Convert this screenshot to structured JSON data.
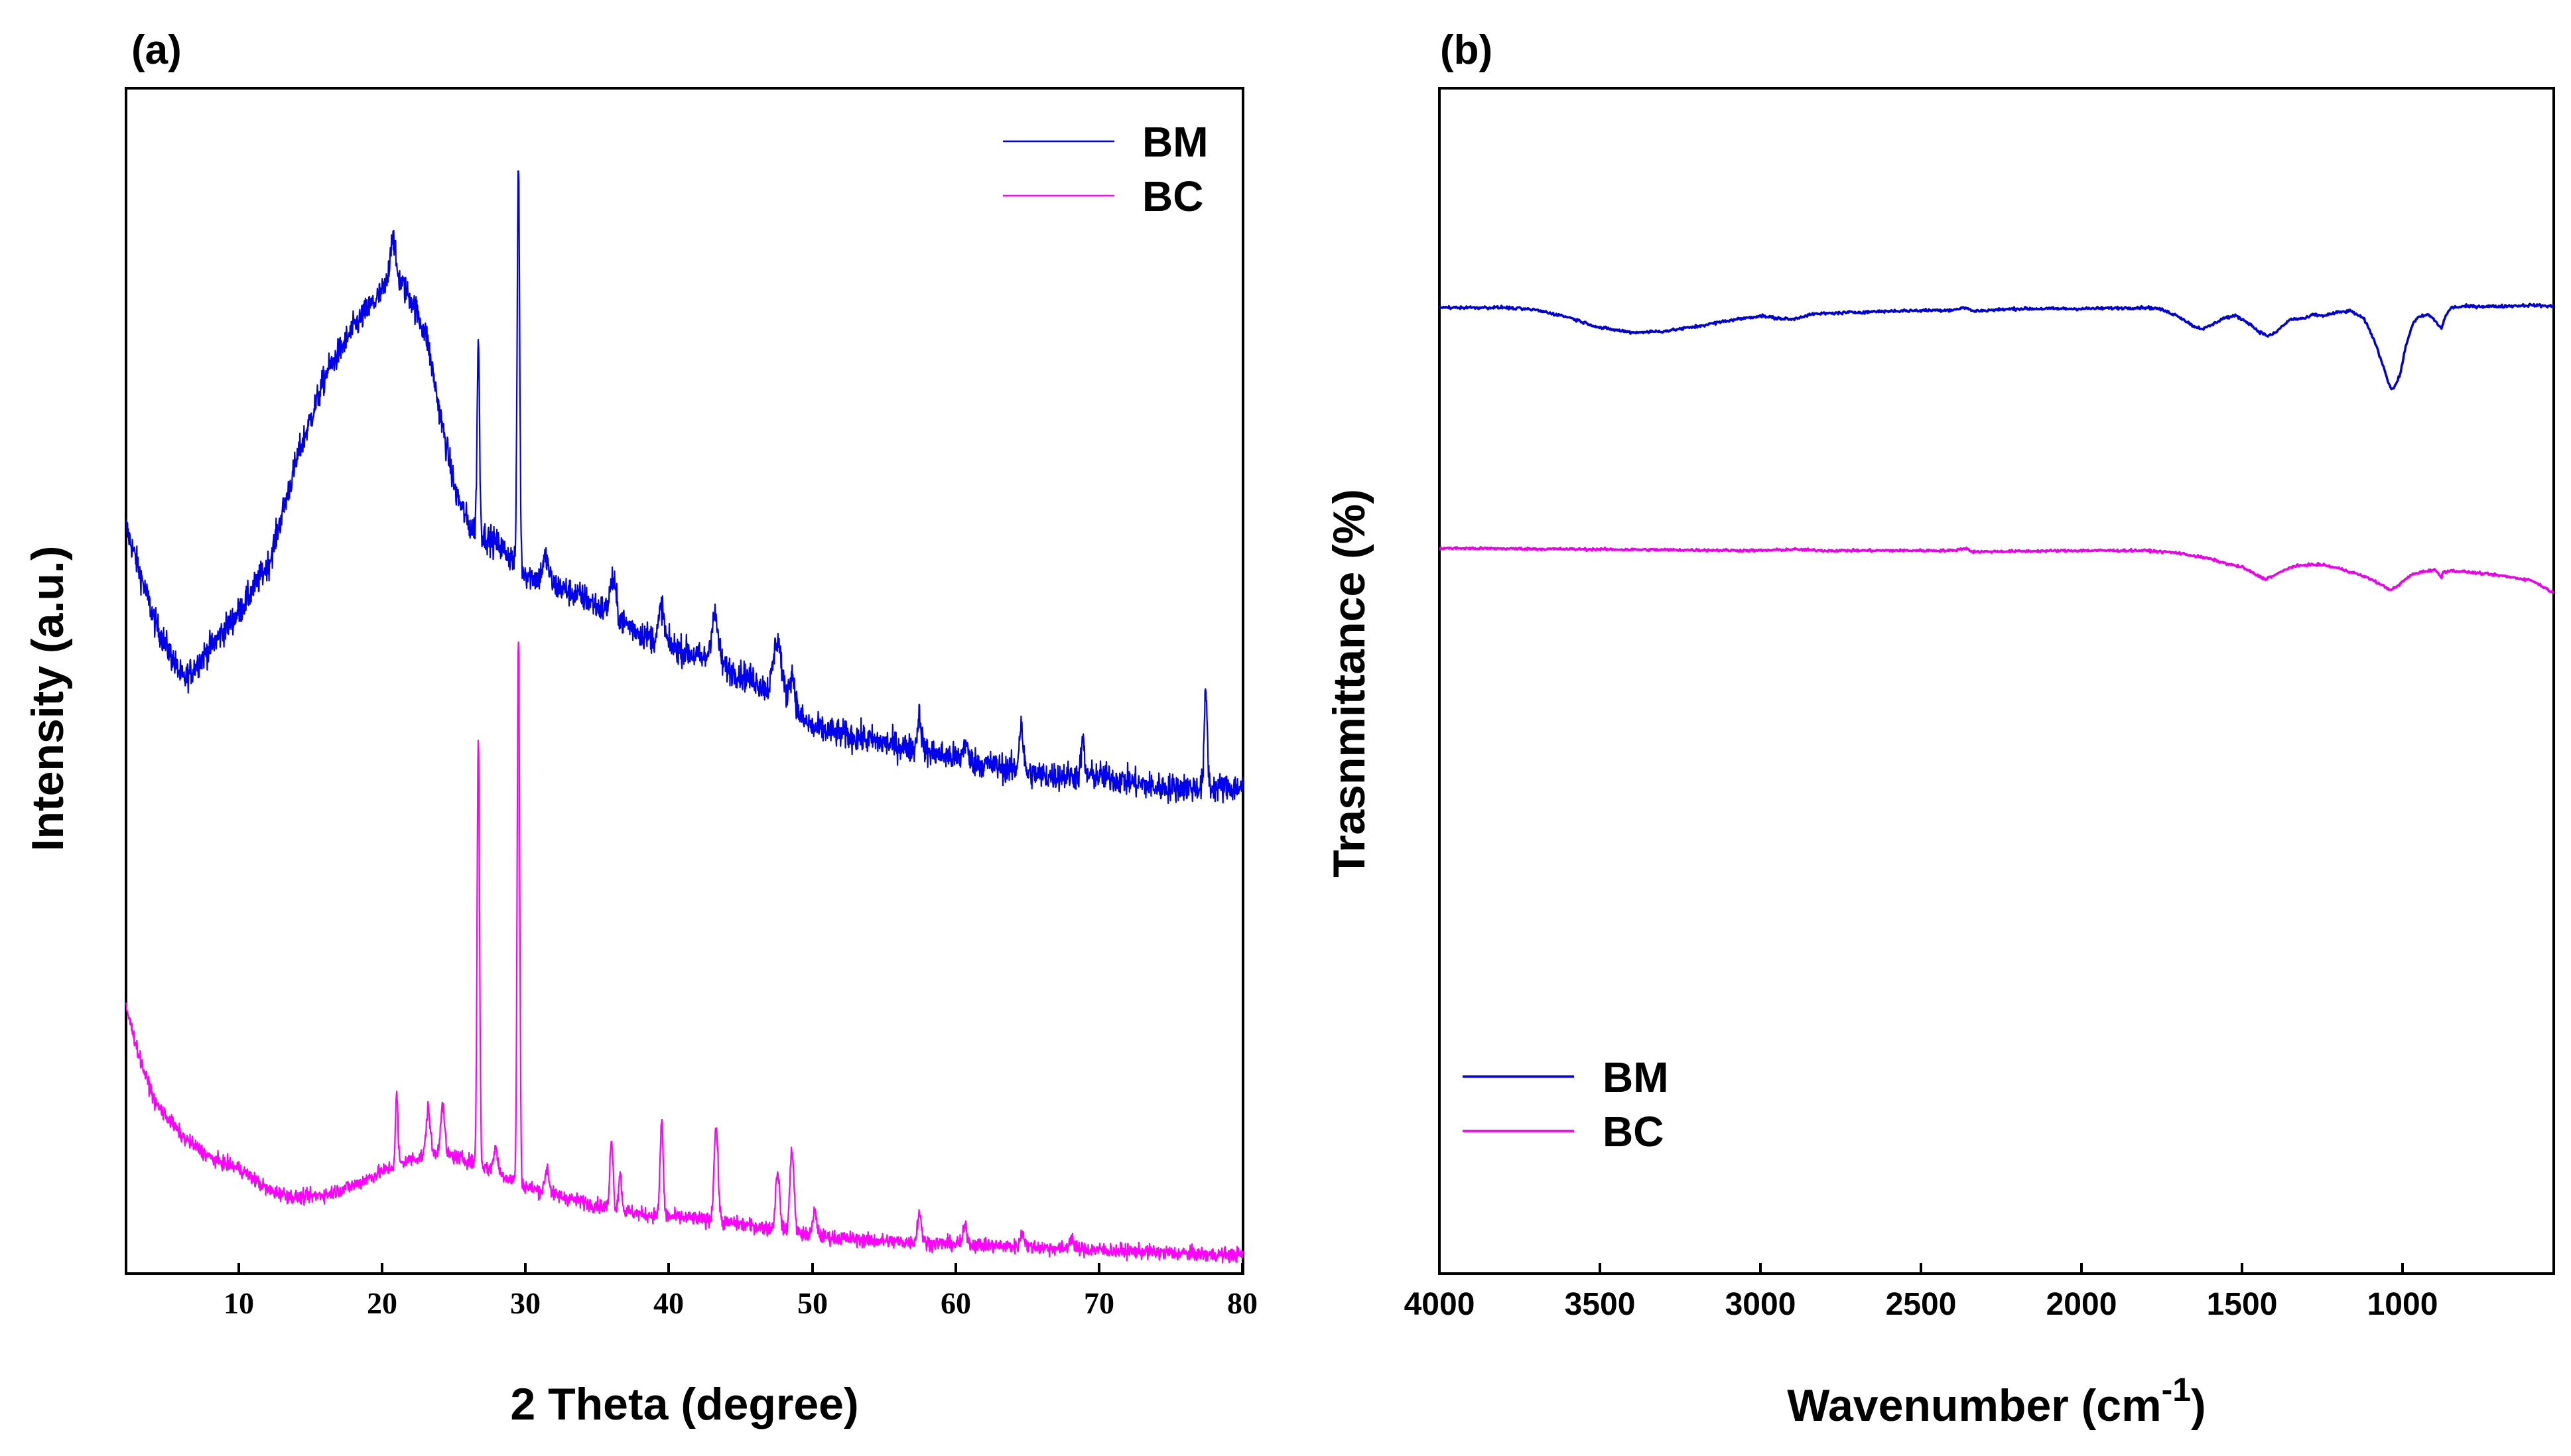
{
  "chart_data": [
    {
      "panel_label": "(a)",
      "type": "line",
      "xlabel": "2 Theta (degree)",
      "ylabel": "Intensity (a.u.)",
      "xlim": [
        2,
        80
      ],
      "ylim": [
        0,
        100
      ],
      "x_ticks": [
        10,
        20,
        30,
        40,
        50,
        60,
        70,
        80
      ],
      "x_tick_labels": [
        "10",
        "20",
        "30",
        "40",
        "50",
        "60",
        "70",
        "80"
      ],
      "y_ticks_labelled": false,
      "legend_position": "top-right",
      "legend": [
        "BM",
        "BC"
      ],
      "series": [
        {
          "name": "BM",
          "color": "#0000ee",
          "kind": "xrd",
          "noise": 1.2,
          "background": [
            [
              2,
              63
            ],
            [
              4,
              55
            ],
            [
              6,
              50
            ],
            [
              8,
              53
            ],
            [
              10,
              56
            ],
            [
              12,
              60
            ],
            [
              14,
              69
            ],
            [
              16,
              76
            ],
            [
              18,
              80
            ],
            [
              20,
              83
            ],
            [
              21,
              84
            ],
            [
              22,
              82
            ],
            [
              23,
              79
            ],
            [
              24,
              72
            ],
            [
              25,
              66
            ],
            [
              26,
              63
            ],
            [
              28,
              61.5
            ],
            [
              30,
              59
            ],
            [
              34,
              57
            ],
            [
              38,
              54
            ],
            [
              42,
              52
            ],
            [
              46,
              50
            ],
            [
              50,
              46
            ],
            [
              54,
              45
            ],
            [
              58,
              44
            ],
            [
              62,
              43
            ],
            [
              66,
              42
            ],
            [
              70,
              42
            ],
            [
              74,
              41
            ],
            [
              78,
              41
            ],
            [
              80,
              41
            ]
          ],
          "peaks": [
            [
              20.6,
              4,
              0.25
            ],
            [
              26.6,
              16,
              0.12
            ],
            [
              29.4,
              34,
              0.12
            ],
            [
              31.3,
              2,
              0.3
            ],
            [
              36,
              3,
              0.3
            ],
            [
              39.4,
              3,
              0.25
            ],
            [
              43.1,
              4,
              0.35
            ],
            [
              47.5,
              5,
              0.4
            ],
            [
              48.5,
              3,
              0.3
            ],
            [
              57.4,
              3,
              0.2
            ],
            [
              60.6,
              1.5,
              0.2
            ],
            [
              64.5,
              4,
              0.2
            ],
            [
              68.8,
              3,
              0.15
            ],
            [
              77.4,
              8,
              0.15
            ]
          ]
        },
        {
          "name": "BC",
          "color": "#ff00ff",
          "kind": "xrd",
          "noise": 0.6,
          "background": [
            [
              2,
              22.5
            ],
            [
              3,
              18
            ],
            [
              4,
              14.5
            ],
            [
              6,
              11.5
            ],
            [
              8,
              9.7
            ],
            [
              10,
              8.8
            ],
            [
              12,
              7
            ],
            [
              14,
              6.4
            ],
            [
              16,
              6.7
            ],
            [
              18,
              7.5
            ],
            [
              20,
              8.7
            ],
            [
              22,
              9.7
            ],
            [
              24,
              10.2
            ],
            [
              26,
              9.5
            ],
            [
              28,
              8.5
            ],
            [
              30,
              7.3
            ],
            [
              34,
              6
            ],
            [
              38,
              5
            ],
            [
              42,
              4.6
            ],
            [
              46,
              4
            ],
            [
              50,
              3.2
            ],
            [
              54,
              2.8
            ],
            [
              58,
              2.6
            ],
            [
              62,
              2.4
            ],
            [
              66,
              2.2
            ],
            [
              70,
              2
            ],
            [
              74,
              1.8
            ],
            [
              78,
              1.6
            ],
            [
              80,
              1.6
            ]
          ],
          "peaks": [
            [
              20.9,
              6,
              0.12
            ],
            [
              23.1,
              4,
              0.2
            ],
            [
              24.1,
              4,
              0.2
            ],
            [
              26.6,
              36,
              0.12
            ],
            [
              27.8,
              2,
              0.2
            ],
            [
              29.4,
              46,
              0.12
            ],
            [
              31.4,
              2,
              0.2
            ],
            [
              35.9,
              6,
              0.15
            ],
            [
              36.5,
              3,
              0.15
            ],
            [
              39.4,
              8,
              0.15
            ],
            [
              43.2,
              8,
              0.2
            ],
            [
              47.5,
              5,
              0.2
            ],
            [
              48.5,
              7,
              0.2
            ],
            [
              50.1,
              2,
              0.2
            ],
            [
              57.4,
              2.5,
              0.2
            ],
            [
              60.6,
              1.5,
              0.2
            ],
            [
              64.6,
              1.2,
              0.2
            ],
            [
              68,
              1,
              0.2
            ]
          ]
        }
      ]
    },
    {
      "panel_label": "(b)",
      "type": "line",
      "xlabel": "Wavenumber (cm",
      "xlabel_superscript": "-1",
      "xlabel_suffix": ")",
      "ylabel": "Trasnmittance (%)",
      "xlim": [
        4000,
        530
      ],
      "ylim": [
        0,
        100
      ],
      "x_ticks": [
        4000,
        3500,
        3000,
        2500,
        2000,
        1500,
        1000
      ],
      "x_tick_labels": [
        "4000",
        "3500",
        "3000",
        "2500",
        "2000",
        "1500",
        "1000"
      ],
      "y_ticks_labelled": false,
      "legend_position": "bottom-left",
      "legend": [
        "BM",
        "BC"
      ],
      "series": [
        {
          "name": "BM",
          "color": "#0000dd",
          "kind": "ftir",
          "noise": 0.12,
          "points": [
            [
              4000,
              81.5
            ],
            [
              3800,
              81.5
            ],
            [
              3700,
              81.3
            ],
            [
              3600,
              80.7
            ],
            [
              3500,
              79.8
            ],
            [
              3400,
              79.4
            ],
            [
              3300,
              79.5
            ],
            [
              3200,
              79.9
            ],
            [
              3100,
              80.4
            ],
            [
              3000,
              80.8
            ],
            [
              2950,
              80.6
            ],
            [
              2900,
              80.5
            ],
            [
              2850,
              80.9
            ],
            [
              2800,
              81
            ],
            [
              2600,
              81.2
            ],
            [
              2400,
              81.3
            ],
            [
              2360,
              81.5
            ],
            [
              2340,
              81.2
            ],
            [
              2200,
              81.4
            ],
            [
              2000,
              81.4
            ],
            [
              1800,
              81.5
            ],
            [
              1760,
              81.4
            ],
            [
              1700,
              80.8
            ],
            [
              1650,
              79.9
            ],
            [
              1620,
              79.7
            ],
            [
              1590,
              80.1
            ],
            [
              1560,
              80.6
            ],
            [
              1520,
              80.8
            ],
            [
              1480,
              80.2
            ],
            [
              1450,
              79.5
            ],
            [
              1420,
              79.1
            ],
            [
              1400,
              79.3
            ],
            [
              1380,
              79.8
            ],
            [
              1350,
              80.5
            ],
            [
              1300,
              80.6
            ],
            [
              1280,
              80.9
            ],
            [
              1250,
              80.8
            ],
            [
              1200,
              81.1
            ],
            [
              1160,
              81.2
            ],
            [
              1120,
              80.5
            ],
            [
              1090,
              78.8
            ],
            [
              1060,
              76.5
            ],
            [
              1040,
              74.8
            ],
            [
              1030,
              74.6
            ],
            [
              1010,
              75.7
            ],
            [
              990,
              78.3
            ],
            [
              970,
              80.1
            ],
            [
              950,
              80.7
            ],
            [
              920,
              80.9
            ],
            [
              900,
              80.4
            ],
            [
              880,
              79.7
            ],
            [
              870,
              80.6
            ],
            [
              850,
              81.5
            ],
            [
              800,
              81.6
            ],
            [
              700,
              81.6
            ],
            [
              600,
              81.7
            ],
            [
              530,
              81.6
            ]
          ]
        },
        {
          "name": "BC",
          "color": "#ee00ee",
          "kind": "ftir",
          "noise": 0.1,
          "points": [
            [
              4000,
              61.2
            ],
            [
              3500,
              61.1
            ],
            [
              3000,
              61
            ],
            [
              2900,
              61.1
            ],
            [
              2800,
              61
            ],
            [
              2400,
              61
            ],
            [
              2360,
              61.2
            ],
            [
              2340,
              60.9
            ],
            [
              2000,
              61
            ],
            [
              1800,
              61
            ],
            [
              1700,
              60.8
            ],
            [
              1600,
              60.3
            ],
            [
              1550,
              59.9
            ],
            [
              1500,
              59.6
            ],
            [
              1460,
              59
            ],
            [
              1430,
              58.6
            ],
            [
              1400,
              58.9
            ],
            [
              1350,
              59.6
            ],
            [
              1300,
              59.8
            ],
            [
              1250,
              59.8
            ],
            [
              1200,
              59.5
            ],
            [
              1150,
              59.1
            ],
            [
              1100,
              58.6
            ],
            [
              1060,
              58
            ],
            [
              1040,
              57.7
            ],
            [
              1020,
              57.9
            ],
            [
              1000,
              58.4
            ],
            [
              970,
              59
            ],
            [
              940,
              59.2
            ],
            [
              900,
              59.4
            ],
            [
              880,
              58.7
            ],
            [
              875,
              59.2
            ],
            [
              850,
              59.3
            ],
            [
              800,
              59.2
            ],
            [
              700,
              58.9
            ],
            [
              600,
              58.5
            ],
            [
              560,
              57.9
            ],
            [
              530,
              57.4
            ]
          ]
        }
      ]
    }
  ]
}
